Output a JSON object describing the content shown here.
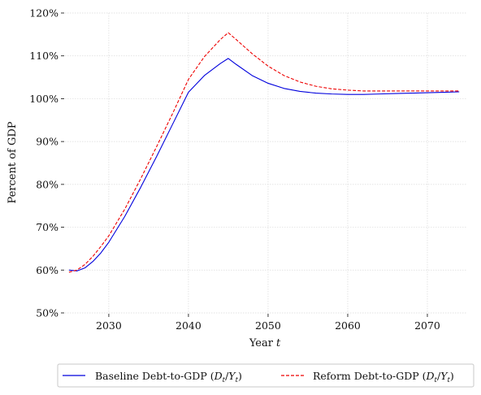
{
  "chart_data": {
    "type": "line",
    "title": "",
    "xlabel_prefix": "Year",
    "xlabel_var": "t",
    "ylabel": "Percent of GDP",
    "xlim": [
      2024.5,
      2075
    ],
    "ylim": [
      50,
      120
    ],
    "x_ticks": [
      2030,
      2040,
      2050,
      2060,
      2070
    ],
    "x_tick_labels": [
      "2030",
      "2040",
      "2050",
      "2060",
      "2070"
    ],
    "y_ticks": [
      50,
      60,
      70,
      80,
      90,
      100,
      110,
      120
    ],
    "y_tick_labels": [
      "50%",
      "60%",
      "70%",
      "80%",
      "90%",
      "100%",
      "110%",
      "120%"
    ],
    "grid": true,
    "legend_position": "bottom-center",
    "series": [
      {
        "name": "Baseline Debt-to-GDP",
        "name_math": "(Dt/Yt)",
        "color": "#0000dd",
        "line_style": "solid",
        "x": [
          2025,
          2026,
          2027,
          2028,
          2029,
          2030,
          2032,
          2034,
          2036,
          2038,
          2040,
          2042,
          2044,
          2045,
          2046,
          2048,
          2050,
          2052,
          2054,
          2056,
          2058,
          2060,
          2062,
          2064,
          2066,
          2068,
          2070,
          2072,
          2074
        ],
        "y": [
          60.0,
          59.8,
          60.5,
          62.0,
          64.0,
          66.5,
          72.5,
          79.3,
          86.5,
          94.0,
          101.5,
          105.4,
          108.2,
          109.4,
          108.0,
          105.4,
          103.6,
          102.4,
          101.7,
          101.3,
          101.1,
          101.0,
          101.0,
          101.1,
          101.2,
          101.3,
          101.4,
          101.5,
          101.6
        ]
      },
      {
        "name": "Reform Debt-to-GDP",
        "name_math": "(Dt/Yt)",
        "color": "#ee0000",
        "line_style": "dashed",
        "x": [
          2025,
          2026,
          2027,
          2028,
          2029,
          2030,
          2032,
          2034,
          2036,
          2038,
          2040,
          2042,
          2044,
          2045,
          2046,
          2048,
          2050,
          2052,
          2054,
          2056,
          2058,
          2060,
          2062,
          2064,
          2066,
          2068,
          2070,
          2072,
          2074
        ],
        "y": [
          59.5,
          60.0,
          61.3,
          63.2,
          65.5,
          68.0,
          74.2,
          81.3,
          88.8,
          96.5,
          104.5,
          109.8,
          113.8,
          115.4,
          113.8,
          110.5,
          107.6,
          105.4,
          103.9,
          102.9,
          102.3,
          102.0,
          101.8,
          101.8,
          101.8,
          101.8,
          101.8,
          101.8,
          101.8
        ]
      }
    ]
  }
}
